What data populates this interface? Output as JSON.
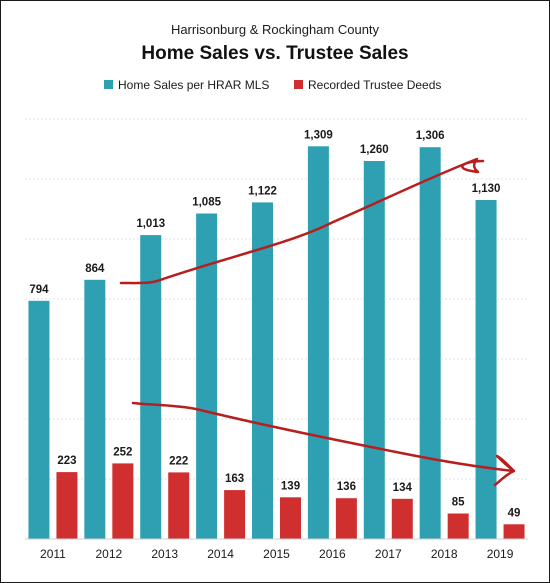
{
  "chart_data": {
    "type": "bar",
    "subtitle": "Harrisonburg & Rockingham County",
    "title": "Home Sales vs. Trustee Sales",
    "categories": [
      "2011",
      "2012",
      "2013",
      "2014",
      "2015",
      "2016",
      "2017",
      "2018",
      "2019"
    ],
    "series": [
      {
        "name": "Home Sales per HRAR MLS",
        "values": [
          794,
          864,
          1013,
          1085,
          1122,
          1309,
          1260,
          1306,
          1130
        ],
        "labels": [
          "794",
          "864",
          "1,013",
          "1,085",
          "1,122",
          "1,309",
          "1,260",
          "1,306",
          "1,130"
        ],
        "color": "#2f9fb2"
      },
      {
        "name": "Recorded Trustee Deeds",
        "values": [
          223,
          252,
          222,
          163,
          139,
          136,
          134,
          85,
          49
        ],
        "labels": [
          "223",
          "252",
          "222",
          "163",
          "139",
          "136",
          "134",
          "85",
          "49"
        ],
        "color": "#cf2f2f"
      }
    ],
    "ylim": [
      0,
      1400
    ],
    "gridlines": true,
    "legend_position": "top",
    "annotations": [
      {
        "type": "hand-drawn trend arrow",
        "direction": "up",
        "color": "#b81e1e"
      },
      {
        "type": "hand-drawn trend arrow",
        "direction": "down",
        "color": "#b81e1e"
      }
    ]
  }
}
